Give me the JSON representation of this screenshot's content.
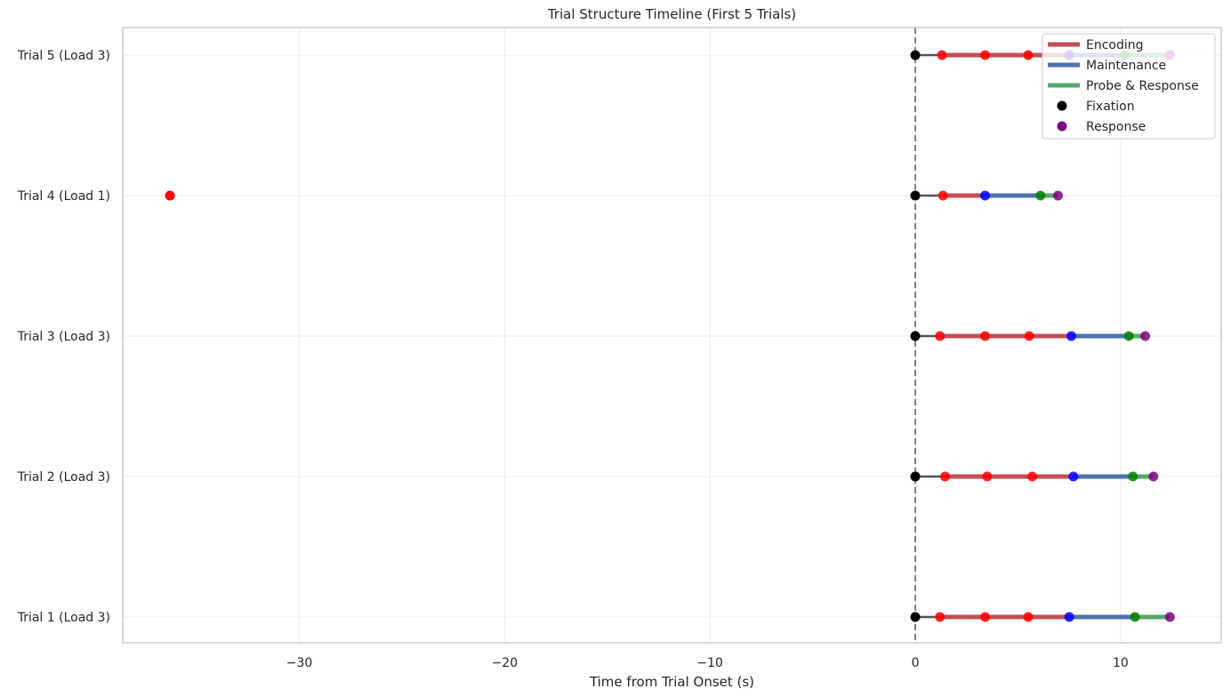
{
  "chart_data": {
    "type": "timeline",
    "title": "Trial Structure Timeline (First 5 Trials)",
    "xlabel": "Time from Trial Onset (s)",
    "ylabel": "",
    "xlim": [
      -38.6,
      14.9
    ],
    "xticks": [
      -30,
      -20,
      -10,
      0,
      10
    ],
    "xtick_labels": [
      "−30",
      "−20",
      "−10",
      "0",
      "10"
    ],
    "grid": true,
    "legend_position": "top-right",
    "reference_line": {
      "x": 0,
      "style": "dashed",
      "color": "#808080"
    },
    "colors": {
      "fixation_line": "#555555",
      "encoding_line": "#c44e52",
      "maintenance_line": "#4c72b0",
      "probe_line": "#55a868",
      "fixation_marker": "#000000",
      "encoding_marker": "#ff0000",
      "maintenance_marker": "#0000ff",
      "probe_marker": "#008000",
      "response_marker": "#800080"
    },
    "legend": [
      {
        "label": "Encoding",
        "kind": "line",
        "color": "#c44e52"
      },
      {
        "label": "Maintenance",
        "kind": "line",
        "color": "#4c72b0"
      },
      {
        "label": "Probe & Response",
        "kind": "line",
        "color": "#55a868"
      },
      {
        "label": "Fixation",
        "kind": "dot",
        "color": "#000000"
      },
      {
        "label": "Response",
        "kind": "dot",
        "color": "#800080"
      }
    ],
    "trials": [
      {
        "label": "Trial 1 (Load 3)",
        "fixation": 0,
        "encoding": [
          1.2,
          3.4,
          5.5
        ],
        "maintenance": 7.5,
        "probe": 10.7,
        "response": 12.4
      },
      {
        "label": "Trial 2 (Load 3)",
        "fixation": 0,
        "encoding": [
          1.45,
          3.5,
          5.7
        ],
        "maintenance": 7.7,
        "probe": 10.6,
        "response": 11.6
      },
      {
        "label": "Trial 3 (Load 3)",
        "fixation": 0,
        "encoding": [
          1.2,
          3.4,
          5.55
        ],
        "maintenance": 7.6,
        "probe": 10.4,
        "response": 11.2
      },
      {
        "label": "Trial 4 (Load 1)",
        "fixation": 0,
        "encoding": [
          1.35
        ],
        "maintenance": 3.4,
        "probe": 6.1,
        "response": 6.95,
        "outlier": -36.3
      },
      {
        "label": "Trial 5 (Load 3)",
        "fixation": 0,
        "encoding": [
          1.3,
          3.4,
          5.5
        ],
        "maintenance": 7.5,
        "probe": 10.2,
        "response": 12.4
      }
    ]
  }
}
